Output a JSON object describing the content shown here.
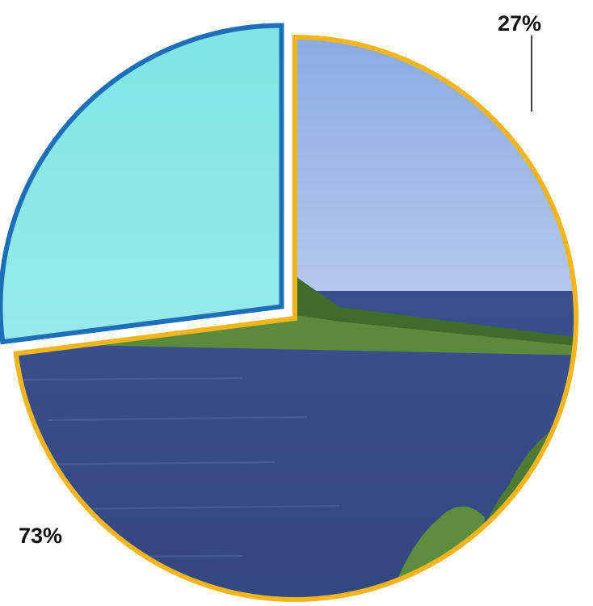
{
  "chart_data": {
    "type": "pie",
    "title": "",
    "slices": [
      {
        "label": "73%",
        "value": 73,
        "border_color": "#F2B51E",
        "fill": "outdoor-pond-photo",
        "exploded": false
      },
      {
        "label": "27%",
        "value": 27,
        "border_color": "#1F6FB8",
        "fill": "indoor-tank-facility-photo",
        "exploded": true
      }
    ],
    "start_angle_deg": 0,
    "direction": "clockwise",
    "legend": "none",
    "label_placement": "outside-with-leader-for-small-slice"
  }
}
